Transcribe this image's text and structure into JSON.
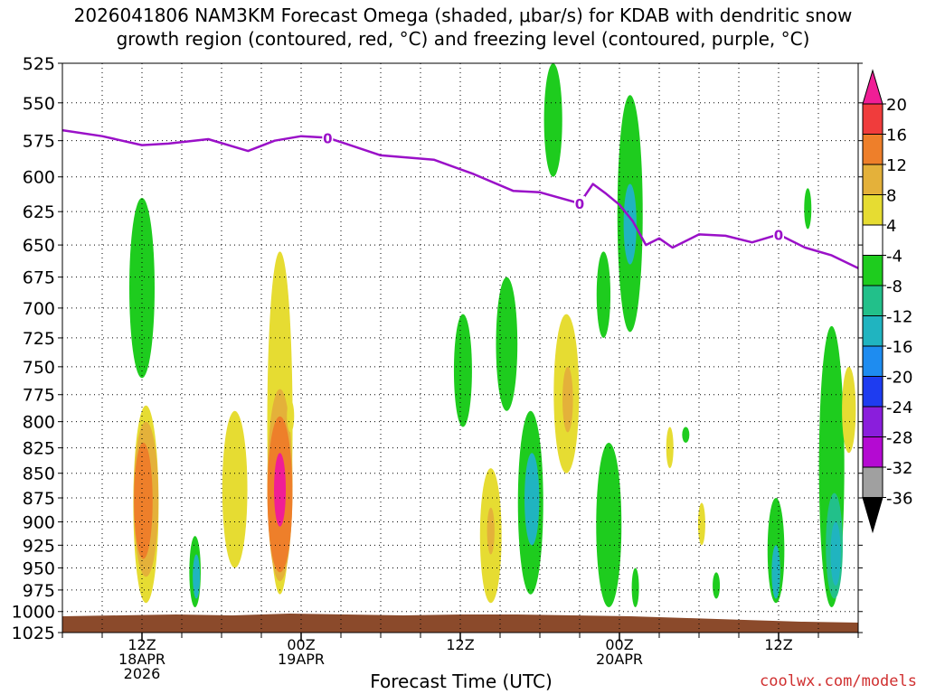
{
  "chart_data": {
    "type": "heatmap",
    "title_line1": "2026041806 NAM3KM Forecast Omega (shaded, μbar/s) for KDAB with dendritic snow",
    "title_line2": "growth region (contoured, red, °C) and freezing level (contoured, purple, °C)",
    "xlabel": "Forecast Time (UTC)",
    "ylabel": "",
    "credit": "coolwx.com/models",
    "x_range_hours": [
      6,
      66
    ],
    "y_range_mb": [
      525,
      1025
    ],
    "y_ticks": [
      525,
      550,
      575,
      600,
      625,
      650,
      675,
      700,
      725,
      750,
      775,
      800,
      825,
      850,
      875,
      900,
      925,
      950,
      975,
      1000,
      1025
    ],
    "x_ticks": [
      {
        "hour": 12,
        "line1": "12Z",
        "line2": "18APR",
        "line3": "2026"
      },
      {
        "hour": 24,
        "line1": "00Z",
        "line2": "19APR",
        "line3": ""
      },
      {
        "hour": 36,
        "line1": "12Z",
        "line2": "",
        "line3": ""
      },
      {
        "hour": 48,
        "line1": "00Z",
        "line2": "20APR",
        "line3": ""
      },
      {
        "hour": 60,
        "line1": "12Z",
        "line2": "",
        "line3": ""
      }
    ],
    "colorbar": {
      "levels": [
        20,
        16,
        12,
        8,
        4,
        -4,
        -8,
        -12,
        -16,
        -20,
        -24,
        -28,
        -32,
        -36
      ],
      "colors": [
        "#f01e96",
        "#f03c3c",
        "#ee7f2a",
        "#e4b13a",
        "#e6dc32",
        "#ffffff",
        "#1ecc1e",
        "#22c08a",
        "#20b4c0",
        "#1e8cf0",
        "#1e3cf0",
        "#8a1edc",
        "#b40ad2",
        "#a0a0a0",
        "#000000"
      ]
    },
    "freezing_level": {
      "label": "0",
      "hours": [
        6,
        9,
        12,
        14,
        17,
        20,
        22,
        24,
        26,
        30,
        34,
        37,
        40,
        42,
        45,
        46,
        47,
        48,
        49,
        50,
        51,
        52,
        54,
        56,
        58,
        60,
        62,
        64,
        66
      ],
      "pressure": [
        568,
        572,
        578,
        577,
        574,
        582,
        575,
        572,
        573,
        585,
        588,
        598,
        610,
        611,
        619,
        605,
        612,
        620,
        632,
        650,
        645,
        652,
        642,
        643,
        648,
        642,
        652,
        658,
        668
      ]
    },
    "omega_regions": [
      {
        "hour": 12.0,
        "p_top": 615,
        "p_bot": 760,
        "value": -6
      },
      {
        "hour": 12.3,
        "p_top": 785,
        "p_bot": 990,
        "value": 6
      },
      {
        "hour": 12.3,
        "p_top": 800,
        "p_bot": 960,
        "value": 10
      },
      {
        "hour": 12.1,
        "p_top": 820,
        "p_bot": 940,
        "value": 13
      },
      {
        "hour": 16.0,
        "p_top": 915,
        "p_bot": 995,
        "value": -6
      },
      {
        "hour": 16.1,
        "p_top": 935,
        "p_bot": 985,
        "value": -13
      },
      {
        "hour": 19.0,
        "p_top": 790,
        "p_bot": 950,
        "value": 6
      },
      {
        "hour": 22.4,
        "p_top": 655,
        "p_bot": 980,
        "value": 6
      },
      {
        "hour": 22.4,
        "p_top": 770,
        "p_bot": 965,
        "value": 10
      },
      {
        "hour": 22.4,
        "p_top": 795,
        "p_bot": 955,
        "value": 15
      },
      {
        "hour": 22.4,
        "p_top": 830,
        "p_bot": 905,
        "value": 21
      },
      {
        "hour": 23.2,
        "p_top": 780,
        "p_bot": 810,
        "value": 5
      },
      {
        "hour": 36.2,
        "p_top": 705,
        "p_bot": 805,
        "value": -6
      },
      {
        "hour": 38.3,
        "p_top": 845,
        "p_bot": 990,
        "value": 6
      },
      {
        "hour": 38.3,
        "p_top": 885,
        "p_bot": 935,
        "value": 10
      },
      {
        "hour": 39.5,
        "p_top": 675,
        "p_bot": 790,
        "value": -6
      },
      {
        "hour": 41.3,
        "p_top": 790,
        "p_bot": 980,
        "value": -6
      },
      {
        "hour": 41.4,
        "p_top": 830,
        "p_bot": 925,
        "value": -13
      },
      {
        "hour": 43.0,
        "p_top": 525,
        "p_bot": 600,
        "value": -6
      },
      {
        "hour": 44.0,
        "p_top": 705,
        "p_bot": 850,
        "value": 6
      },
      {
        "hour": 44.1,
        "p_top": 750,
        "p_bot": 810,
        "value": 10
      },
      {
        "hour": 46.8,
        "p_top": 655,
        "p_bot": 725,
        "value": -6
      },
      {
        "hour": 47.2,
        "p_top": 820,
        "p_bot": 995,
        "value": -6
      },
      {
        "hour": 48.8,
        "p_top": 545,
        "p_bot": 720,
        "value": -6
      },
      {
        "hour": 48.8,
        "p_top": 605,
        "p_bot": 665,
        "value": -13
      },
      {
        "hour": 49.2,
        "p_top": 950,
        "p_bot": 995,
        "value": -6
      },
      {
        "hour": 51.8,
        "p_top": 805,
        "p_bot": 845,
        "value": 5
      },
      {
        "hour": 53.0,
        "p_top": 805,
        "p_bot": 820,
        "value": -6
      },
      {
        "hour": 54.2,
        "p_top": 880,
        "p_bot": 925,
        "value": 5
      },
      {
        "hour": 55.3,
        "p_top": 955,
        "p_bot": 985,
        "value": -6
      },
      {
        "hour": 59.8,
        "p_top": 875,
        "p_bot": 990,
        "value": -6
      },
      {
        "hour": 59.8,
        "p_top": 925,
        "p_bot": 985,
        "value": -13
      },
      {
        "hour": 62.2,
        "p_top": 608,
        "p_bot": 638,
        "value": -6
      },
      {
        "hour": 64.0,
        "p_top": 715,
        "p_bot": 995,
        "value": -6
      },
      {
        "hour": 64.2,
        "p_top": 870,
        "p_bot": 985,
        "value": -10
      },
      {
        "hour": 64.3,
        "p_top": 900,
        "p_bot": 970,
        "value": -14
      },
      {
        "hour": 65.3,
        "p_top": 750,
        "p_bot": 830,
        "value": 5
      }
    ],
    "terrain": {
      "color": "#8b4a2b",
      "label": "surface"
    }
  }
}
